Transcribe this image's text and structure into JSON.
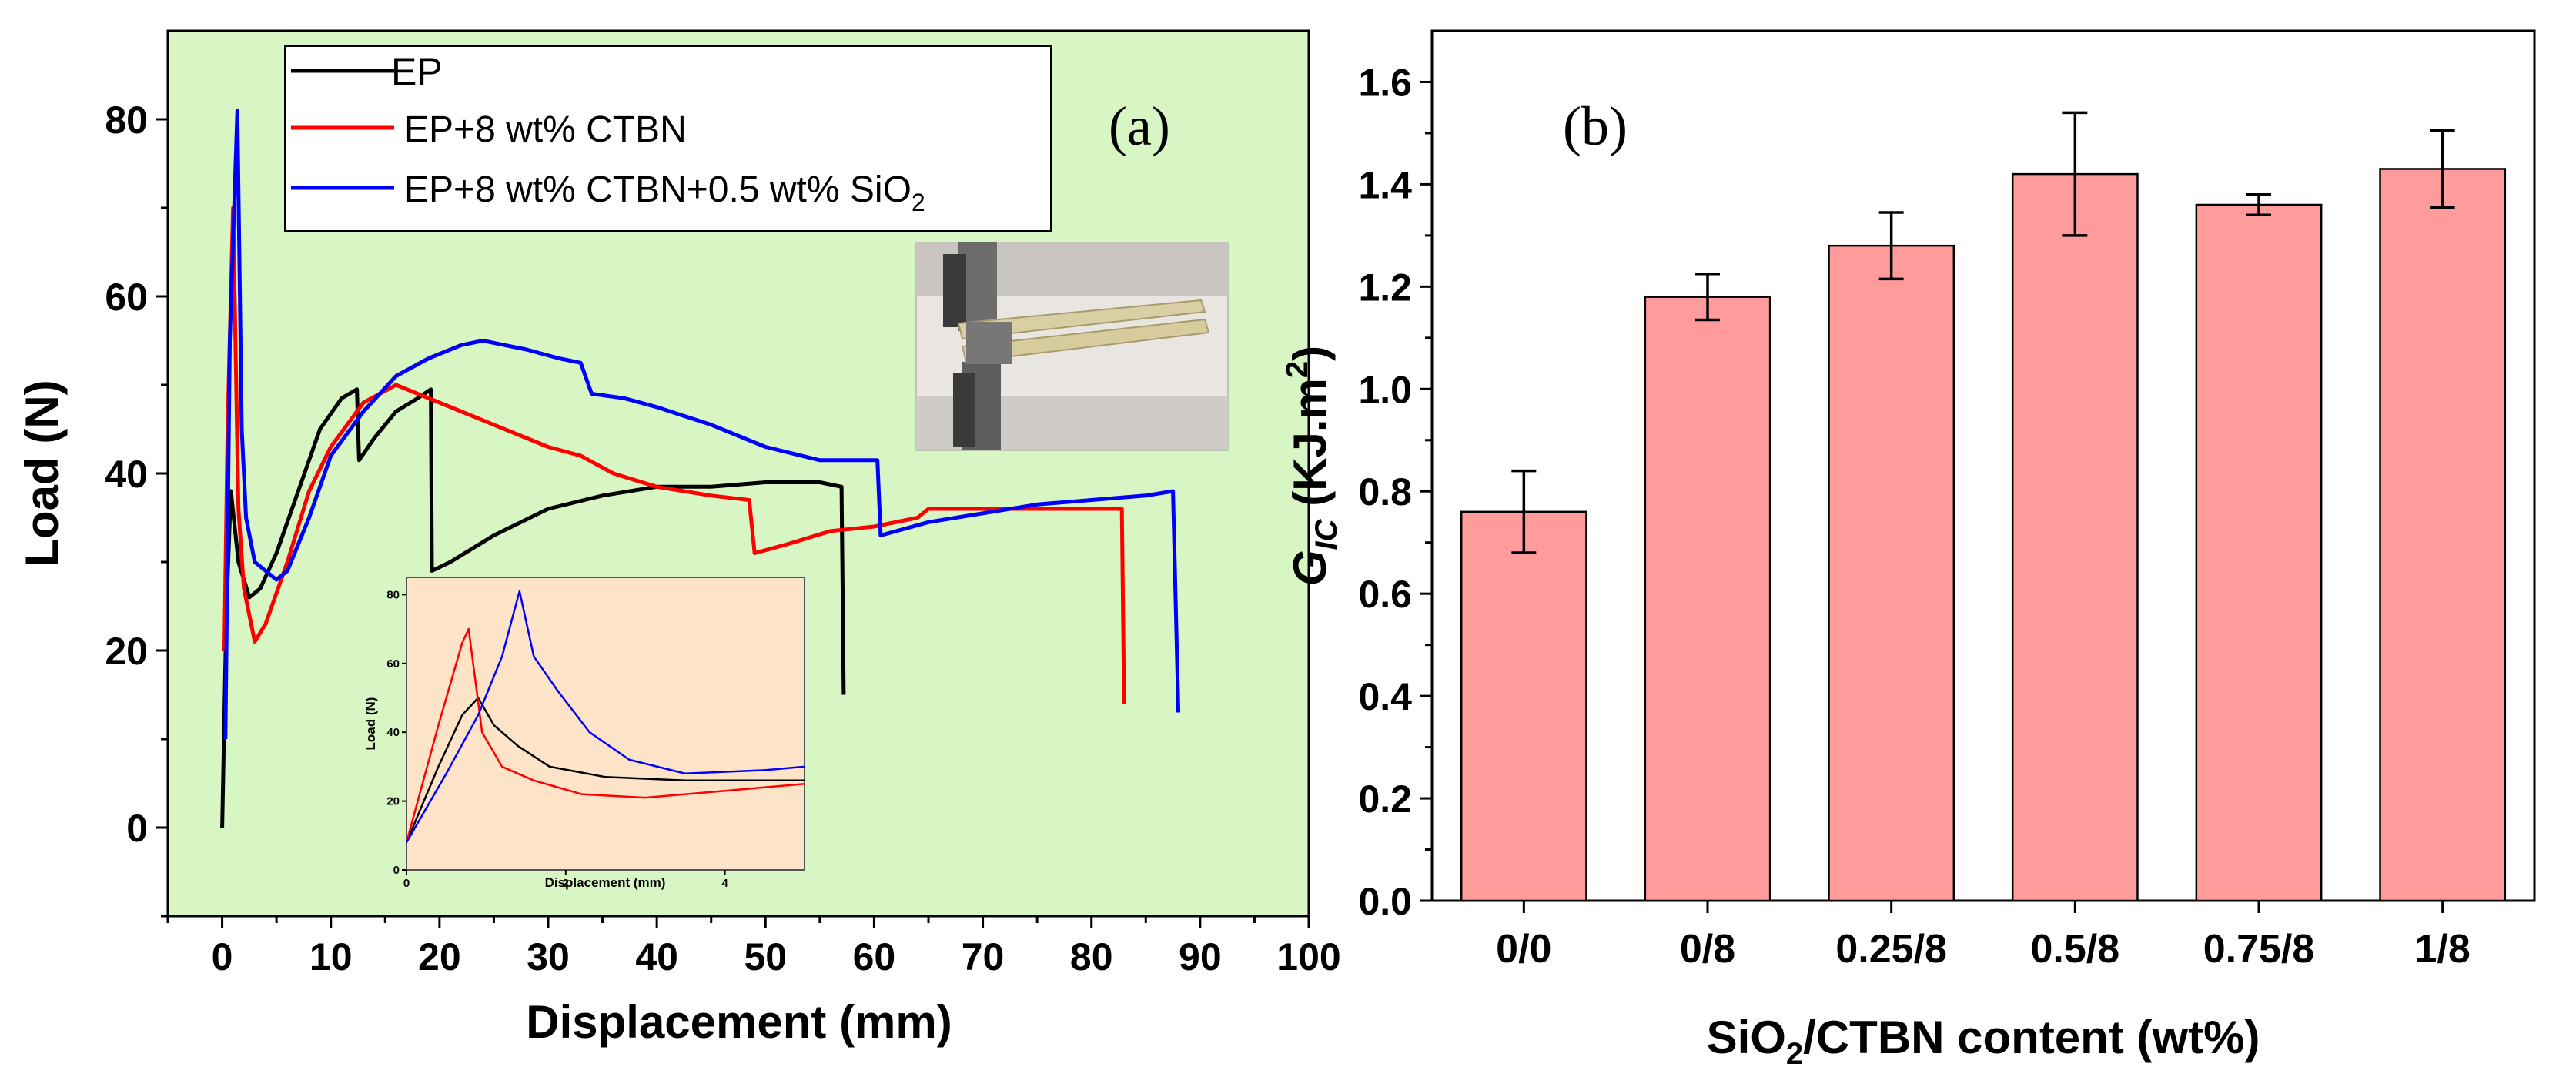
{
  "chart_data": [
    {
      "panel": "(a)",
      "type": "line",
      "xlabel": "Displacement (mm)",
      "ylabel": "Load (N)",
      "xlim": [
        -5,
        100
      ],
      "ylim": [
        -10,
        90
      ],
      "x_ticks": [
        "0",
        "10",
        "20",
        "30",
        "40",
        "50",
        "60",
        "70",
        "80",
        "90",
        "100"
      ],
      "y_ticks": [
        "0",
        "20",
        "40",
        "60",
        "80"
      ],
      "legend": {
        "ep": "EP",
        "ctbn": "EP+8 wt% CTBN",
        "sio2_main": "EP+8 wt% CTBN+0.5 wt% SiO",
        "sio2_sub": "2"
      },
      "colors": {
        "ep": "#000000",
        "ctbn": "#ff0000",
        "sio2": "#0000ff",
        "plot_bg": "#d8f5c4",
        "inset_bg": "#fde3c8"
      },
      "series": [
        {
          "key": "ep",
          "name": "EP",
          "x": [
            0,
            0.4,
            0.8,
            1.5,
            2.5,
            3.5,
            5,
            7,
            9,
            11,
            12.4,
            12.6,
            14,
            16,
            18,
            19.2,
            19.3,
            21,
            25,
            30,
            35,
            40,
            45,
            50,
            55,
            57,
            57.2
          ],
          "y": [
            0,
            25,
            38,
            30,
            26,
            27,
            31,
            38,
            45,
            48.5,
            49.5,
            41.5,
            44,
            47,
            48.5,
            49.5,
            29,
            30,
            33,
            36,
            37.5,
            38.5,
            38.5,
            39,
            39,
            38.5,
            15
          ]
        },
        {
          "key": "ctbn",
          "name": "EP+8 wt% CTBN",
          "x": [
            0.2,
            0.5,
            1,
            1.5,
            2,
            3,
            4,
            6,
            8,
            10,
            13,
            16,
            18,
            20,
            22,
            25,
            28,
            30,
            33,
            36,
            40,
            45,
            48.5,
            49,
            52,
            56,
            60,
            64,
            65,
            70,
            75,
            80,
            82.8,
            83
          ],
          "y": [
            20,
            45,
            70,
            36,
            27,
            21,
            23,
            30,
            38,
            43,
            48,
            50,
            49,
            48,
            47,
            45.5,
            44,
            43,
            42,
            40,
            38.5,
            37.5,
            37,
            31,
            32,
            33.5,
            34,
            35,
            36,
            36,
            36,
            36,
            36,
            14
          ]
        },
        {
          "key": "sio2",
          "name": "EP+8 wt% CTBN+0.5 wt% SiO2",
          "x": [
            0.3,
            0.7,
            1.4,
            1.8,
            2.2,
            3,
            4,
            5,
            6,
            8,
            10,
            13,
            16,
            19,
            22,
            24,
            26,
            28,
            31,
            33,
            34,
            37,
            40,
            45,
            50,
            55,
            60.3,
            60.6,
            65,
            70,
            75,
            80,
            85,
            87.5,
            88
          ],
          "y": [
            10,
            55,
            81,
            45,
            35,
            30,
            29,
            28,
            29,
            35,
            42,
            47,
            51,
            53,
            54.5,
            55,
            54.5,
            54,
            53,
            52.5,
            49,
            48.5,
            47.5,
            45.5,
            43,
            41.5,
            41.5,
            33,
            34.5,
            35.5,
            36.5,
            37,
            37.5,
            38,
            13
          ]
        }
      ],
      "inset": {
        "xlabel": "Displacement (mm)",
        "ylabel": "Load (N)",
        "xlim": [
          0,
          5
        ],
        "ylim": [
          0,
          85
        ],
        "x_ticks": [
          "0",
          "2",
          "4"
        ],
        "y_ticks": [
          "0",
          "20",
          "40",
          "60",
          "80"
        ],
        "series": [
          {
            "key": "ep",
            "x": [
              0,
              0.4,
              0.7,
              0.9,
              1.1,
              1.4,
              1.8,
              2.5,
              3.5,
              4.5,
              5
            ],
            "y": [
              8,
              30,
              45,
              50,
              42,
              36,
              30,
              27,
              26,
              26,
              26
            ]
          },
          {
            "key": "ctbn",
            "x": [
              0,
              0.4,
              0.7,
              0.78,
              0.95,
              1.2,
              1.6,
              2.2,
              3,
              4,
              5
            ],
            "y": [
              8,
              42,
              66,
              70,
              40,
              30,
              26,
              22,
              21,
              23,
              25
            ]
          },
          {
            "key": "sio2",
            "x": [
              0,
              0.5,
              0.9,
              1.2,
              1.42,
              1.6,
              1.9,
              2.3,
              2.8,
              3.5,
              4.5,
              5
            ],
            "y": [
              8,
              28,
              45,
              62,
              81,
              62,
              52,
              40,
              32,
              28,
              29,
              30
            ]
          }
        ]
      }
    },
    {
      "panel": "(b)",
      "type": "bar",
      "xlabel": "SiO2/CTBN content (wt%)",
      "xlabel_parts": {
        "pre": "SiO",
        "sub": "2",
        "post": "/CTBN content (wt%)"
      },
      "ylabel": "GIC (KJ.m2)",
      "ylabel_parts": {
        "g": "G",
        "sub": "IC",
        "mid": " (KJ.m",
        "sup": "2",
        "end": ")"
      },
      "categories": [
        "0/0",
        "0/8",
        "0.25/8",
        "0.5/8",
        "0.75/8",
        "1/8"
      ],
      "values": [
        0.76,
        1.18,
        1.28,
        1.42,
        1.36,
        1.43
      ],
      "errors": [
        0.08,
        0.045,
        0.065,
        0.12,
        0.02,
        0.075
      ],
      "ylim": [
        0,
        1.7
      ],
      "y_ticks": [
        "0.0",
        "0.2",
        "0.4",
        "0.6",
        "0.8",
        "1.0",
        "1.2",
        "1.4",
        "1.6"
      ],
      "bar_color": "#ff9b9b"
    }
  ]
}
